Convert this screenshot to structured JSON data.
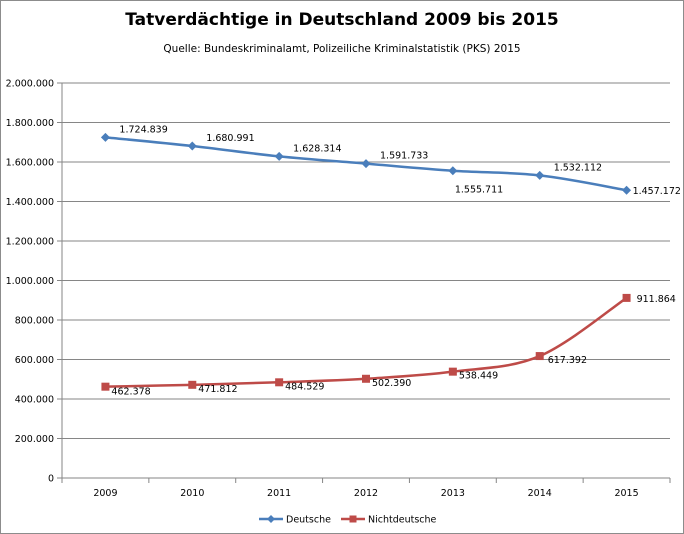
{
  "chart_data": {
    "type": "line",
    "title": "Tatverdächtige in Deutschland 2009 bis 2015",
    "subtitle": "Quelle: Bundeskriminalamt, Polizeiliche Kriminalstatistik (PKS) 2015",
    "categories": [
      "2009",
      "2010",
      "2011",
      "2012",
      "2013",
      "2014",
      "2015"
    ],
    "ylim": [
      0,
      2000000
    ],
    "yticks": [
      0,
      200000,
      400000,
      600000,
      800000,
      1000000,
      1200000,
      1400000,
      1600000,
      1800000,
      2000000
    ],
    "ytick_labels": [
      "0",
      "200.000",
      "400.000",
      "600.000",
      "800.000",
      "1.000.000",
      "1.200.000",
      "1.400.000",
      "1.600.000",
      "1.800.000",
      "2.000.000"
    ],
    "grid": true,
    "legend": "bottom",
    "series": [
      {
        "name": "Deutsche",
        "color": "#4a7ebb",
        "marker": "diamond",
        "values": [
          1724839,
          1680991,
          1628314,
          1591733,
          1555711,
          1532112,
          1457172
        ],
        "labels": [
          "1.724.839",
          "1.680.991",
          "1.628.314",
          "1.591.733",
          "1.555.711",
          "1.532.112",
          "1.457.172"
        ]
      },
      {
        "name": "Nichtdeutsche",
        "color": "#be4b48",
        "marker": "square",
        "values": [
          462378,
          471812,
          484529,
          502390,
          538449,
          617392,
          911864
        ],
        "labels": [
          "462.378",
          "471.812",
          "484.529",
          "502.390",
          "538.449",
          "617.392",
          "911.864"
        ]
      }
    ]
  }
}
